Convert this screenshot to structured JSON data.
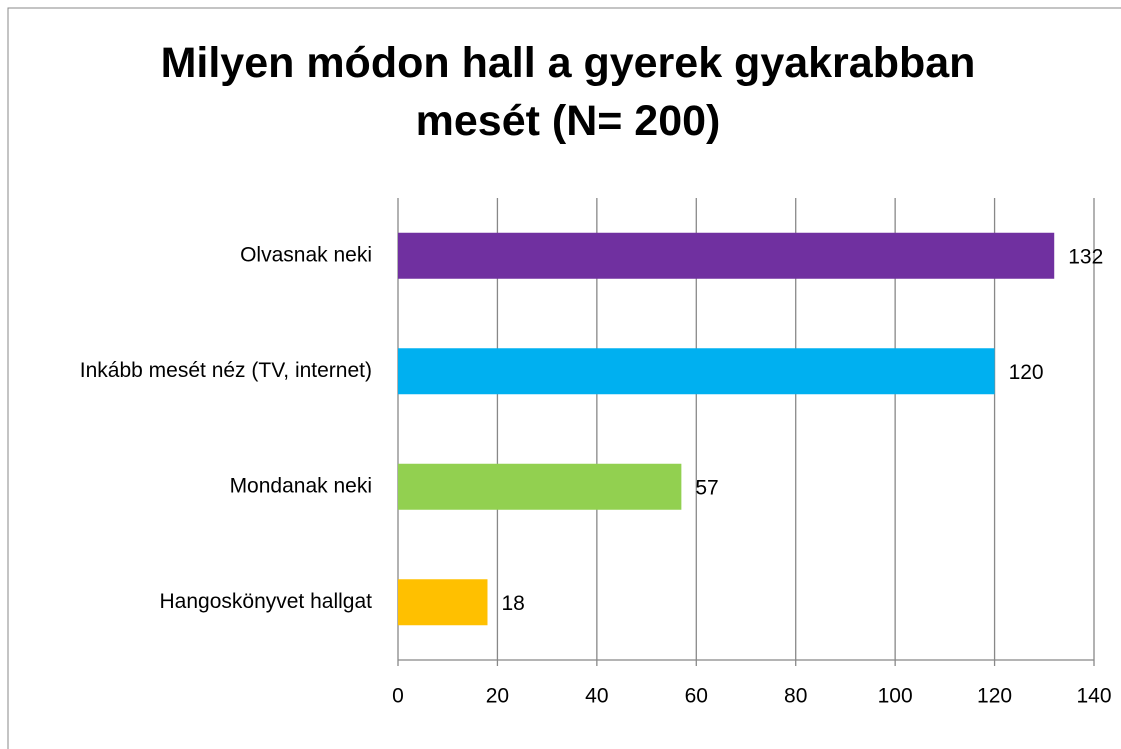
{
  "chart_data": {
    "type": "bar",
    "orientation": "horizontal",
    "title": "Milyen módon hall a gyerek gyakrabban mesét (N= 200)",
    "categories": [
      "Olvasnak neki",
      "Inkább mesét néz (TV, internet)",
      "Mondanak neki",
      "Hangoskönyvet hallgat"
    ],
    "values": [
      132,
      120,
      57,
      18
    ],
    "colors": [
      "#7030a0",
      "#00b0f0",
      "#92d050",
      "#ffc000"
    ],
    "xlim": [
      0,
      140
    ],
    "xticks": [
      0,
      20,
      40,
      60,
      80,
      100,
      120,
      140
    ],
    "grid": true
  }
}
